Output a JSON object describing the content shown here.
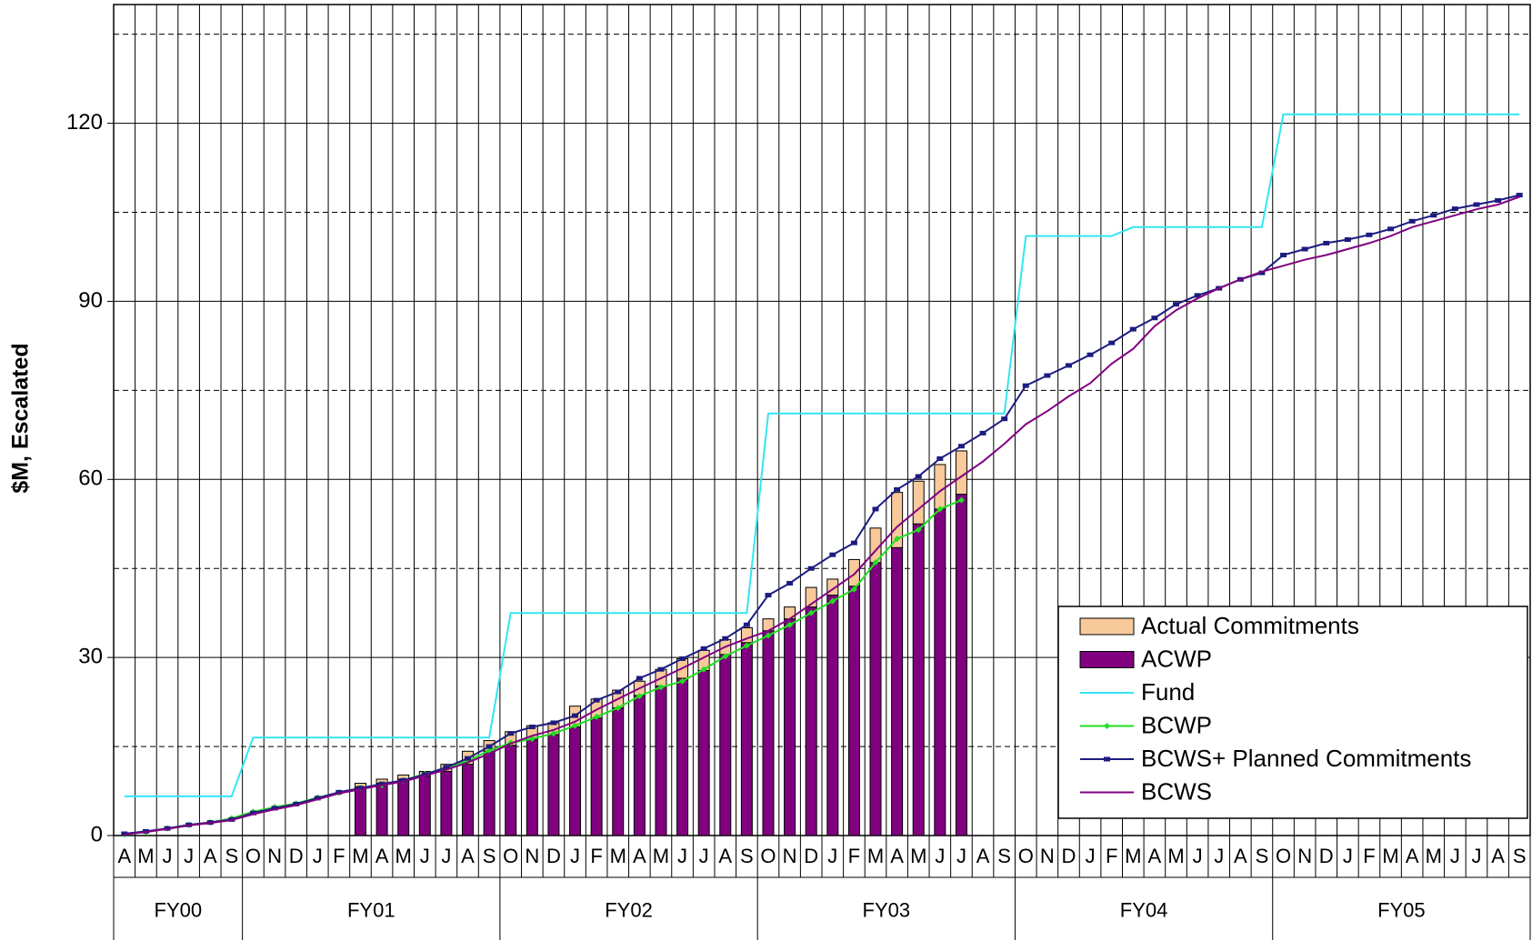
{
  "chart_data": {
    "type": "combo",
    "y_label": "$M, Escalated",
    "categories": [
      "A",
      "M",
      "J",
      "J",
      "A",
      "S",
      "O",
      "N",
      "D",
      "J",
      "F",
      "M",
      "A",
      "M",
      "J",
      "J",
      "A",
      "S",
      "O",
      "N",
      "D",
      "J",
      "F",
      "M",
      "A",
      "M",
      "J",
      "J",
      "A",
      "S",
      "O",
      "N",
      "D",
      "J",
      "F",
      "M",
      "A",
      "M",
      "J",
      "J",
      "A",
      "S",
      "O",
      "N",
      "D",
      "J",
      "F",
      "M",
      "A",
      "M",
      "J",
      "J",
      "A",
      "S",
      "O",
      "N",
      "D",
      "J",
      "F",
      "M",
      "A",
      "M",
      "J",
      "J",
      "A",
      "S"
    ],
    "groups": [
      "FY00",
      "FY01",
      "FY02",
      "FY03",
      "FY04",
      "FY05"
    ],
    "group_sizes": [
      6,
      12,
      12,
      12,
      12,
      12
    ],
    "ylim": [
      0,
      140
    ],
    "yticks": [
      0,
      30,
      60,
      90,
      120
    ],
    "minor_yticks": [
      15,
      45,
      75,
      105,
      135
    ],
    "grid": true,
    "legend": "lower right",
    "series": [
      {
        "name": "Actual Commitments",
        "kind": "bar",
        "stack_on": 1,
        "color": "#f8c99b",
        "values": [
          null,
          null,
          null,
          null,
          null,
          null,
          null,
          null,
          null,
          null,
          null,
          0.6,
          0.7,
          0.7,
          0.8,
          1.2,
          2.2,
          1.8,
          2.3,
          2.3,
          2,
          3.5,
          3.2,
          3,
          2.4,
          2.8,
          3.3,
          3.4,
          2.5,
          2.5,
          2,
          2,
          3.3,
          2.7,
          4.5,
          5.8,
          9.3,
          7.2,
          7.5,
          7.3,
          null,
          null,
          null,
          null,
          null,
          null,
          null,
          null,
          null,
          null,
          null,
          null,
          null,
          null,
          null,
          null,
          null,
          null,
          null,
          null,
          null,
          null,
          null,
          null,
          null,
          null
        ]
      },
      {
        "name": "ACWP",
        "kind": "bar",
        "color": "#800080",
        "values": [
          null,
          null,
          null,
          null,
          null,
          null,
          null,
          null,
          null,
          null,
          null,
          8.2,
          8.8,
          9.5,
          10,
          10.8,
          12,
          14.2,
          15.2,
          16.2,
          17,
          18.3,
          19.8,
          21.5,
          23.6,
          25.2,
          26.5,
          27.8,
          30.5,
          32.5,
          34.5,
          36.5,
          38.5,
          40.5,
          42,
          46,
          48.5,
          52.5,
          55,
          57.5,
          null,
          null,
          null,
          null,
          null,
          null,
          null,
          null,
          null,
          null,
          null,
          null,
          null,
          null,
          null,
          null,
          null,
          null,
          null,
          null,
          null,
          null,
          null,
          null,
          null,
          null
        ]
      },
      {
        "name": "Fund",
        "kind": "line",
        "color": "#33e6f2",
        "values": [
          6.6,
          6.6,
          6.6,
          6.6,
          6.6,
          6.6,
          16.5,
          16.5,
          16.5,
          16.5,
          16.5,
          16.5,
          16.5,
          16.5,
          16.5,
          16.5,
          16.5,
          16.5,
          37.5,
          37.5,
          37.5,
          37.5,
          37.5,
          37.5,
          37.5,
          37.5,
          37.5,
          37.5,
          37.5,
          37.5,
          71.1,
          71.1,
          71.1,
          71.1,
          71.1,
          71.1,
          71.1,
          71.1,
          71.1,
          71.1,
          71.1,
          71.1,
          101,
          101,
          101,
          101,
          101,
          102.5,
          102.5,
          102.5,
          102.5,
          102.5,
          102.5,
          102.5,
          121.5,
          121.5,
          121.5,
          121.5,
          121.5,
          121.5,
          121.5,
          121.5,
          121.5,
          121.5,
          121.5,
          121.5
        ]
      },
      {
        "name": "BCWP",
        "kind": "line",
        "marker": "diamond",
        "color": "#22dd22",
        "values": [
          0.2,
          0.6,
          1.2,
          1.8,
          2.2,
          2.9,
          4.0,
          4.8,
          5.4,
          6.4,
          7.2,
          8.0,
          8.5,
          9.3,
          10.4,
          11.3,
          12.6,
          14.3,
          15.6,
          16.3,
          17.2,
          18.5,
          20.0,
          21.5,
          23.5,
          25.0,
          26.0,
          28.0,
          30.2,
          32.0,
          33.7,
          35.5,
          37.5,
          39.5,
          41.5,
          46,
          50,
          51.5,
          55,
          56.5,
          null,
          null,
          null,
          null,
          null,
          null,
          null,
          null,
          null,
          null,
          null,
          null,
          null,
          null,
          null,
          null,
          null,
          null,
          null,
          null,
          null,
          null,
          null,
          null,
          null,
          null
        ]
      },
      {
        "name": "BCWS+ Planned Commitments",
        "kind": "line",
        "marker": "square",
        "color": "#1c1c80",
        "values": [
          0.3,
          0.7,
          1.2,
          1.8,
          2.2,
          2.7,
          3.8,
          4.6,
          5.3,
          6.3,
          7.3,
          8.0,
          8.7,
          9.3,
          10.3,
          11.5,
          13,
          15,
          17.2,
          18.3,
          19,
          20.2,
          22.8,
          24.2,
          26.5,
          28,
          29.8,
          31.5,
          33.2,
          35.5,
          40.5,
          42.5,
          45,
          47.3,
          49.3,
          55,
          58.3,
          60.5,
          63.5,
          65.6,
          67.8,
          70.2,
          75.8,
          77.5,
          79.2,
          81,
          83,
          85.3,
          87.2,
          89.5,
          91,
          92.2,
          93.7,
          94.8,
          97.8,
          98.8,
          99.8,
          100.4,
          101.2,
          102.2,
          103.5,
          104.5,
          105.6,
          106.3,
          107,
          107.9
        ]
      },
      {
        "name": "BCWS",
        "kind": "line",
        "color": "#800080",
        "values": [
          0.2,
          0.6,
          1.1,
          1.7,
          2.1,
          2.6,
          3.6,
          4.4,
          5.1,
          6.1,
          7.1,
          7.8,
          8.5,
          9.1,
          10.1,
          11.1,
          12.3,
          13.8,
          15.5,
          16.8,
          17.8,
          19.2,
          21.2,
          23.0,
          24.8,
          26.5,
          28.2,
          30.0,
          31.8,
          33.2,
          34.5,
          36.5,
          39,
          41.5,
          44,
          48,
          52,
          55,
          58,
          60.5,
          63,
          66,
          69.3,
          71.5,
          74,
          76.2,
          79.5,
          82,
          85.8,
          88.5,
          90.5,
          92.2,
          93.7,
          95,
          96,
          97,
          97.8,
          98.8,
          99.8,
          101,
          102.5,
          103.5,
          104.5,
          105.5,
          106.3,
          107.6
        ]
      }
    ]
  }
}
